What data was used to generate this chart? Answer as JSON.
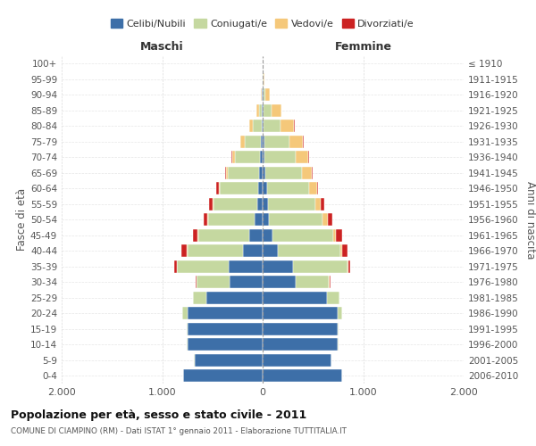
{
  "age_groups": [
    "100+",
    "95-99",
    "90-94",
    "85-89",
    "80-84",
    "75-79",
    "70-74",
    "65-69",
    "60-64",
    "55-59",
    "50-54",
    "45-49",
    "40-44",
    "35-39",
    "30-34",
    "25-29",
    "20-24",
    "15-19",
    "10-14",
    "5-9",
    "0-4"
  ],
  "birth_years": [
    "≤ 1910",
    "1911-1915",
    "1916-1920",
    "1921-1925",
    "1926-1930",
    "1931-1935",
    "1936-1940",
    "1941-1945",
    "1946-1950",
    "1951-1955",
    "1956-1960",
    "1961-1965",
    "1966-1970",
    "1971-1975",
    "1976-1980",
    "1981-1985",
    "1986-1990",
    "1991-1995",
    "1996-2000",
    "2001-2005",
    "2006-2010"
  ],
  "male_celibi": [
    2,
    4,
    5,
    8,
    12,
    18,
    25,
    35,
    45,
    55,
    80,
    130,
    200,
    340,
    330,
    560,
    750,
    750,
    750,
    680,
    790
  ],
  "male_coniugati": [
    0,
    0,
    5,
    30,
    90,
    160,
    250,
    310,
    380,
    430,
    460,
    510,
    550,
    510,
    330,
    130,
    50,
    10,
    5,
    3,
    2
  ],
  "male_vedovi": [
    0,
    0,
    5,
    20,
    30,
    40,
    30,
    20,
    15,
    10,
    8,
    5,
    3,
    2,
    1,
    2,
    0,
    0,
    0,
    0,
    0
  ],
  "male_divorziati": [
    0,
    0,
    0,
    0,
    0,
    5,
    10,
    10,
    25,
    35,
    40,
    50,
    60,
    30,
    10,
    5,
    3,
    0,
    0,
    0,
    0
  ],
  "female_celibi": [
    2,
    4,
    5,
    10,
    12,
    18,
    22,
    30,
    40,
    50,
    65,
    100,
    155,
    300,
    330,
    640,
    750,
    750,
    750,
    680,
    790
  ],
  "female_coniugati": [
    0,
    5,
    20,
    80,
    170,
    250,
    310,
    360,
    420,
    470,
    530,
    600,
    620,
    540,
    330,
    120,
    40,
    8,
    3,
    2,
    2
  ],
  "female_vedovi": [
    2,
    10,
    50,
    100,
    130,
    130,
    120,
    100,
    80,
    60,
    50,
    30,
    20,
    10,
    5,
    3,
    1,
    0,
    0,
    0,
    0
  ],
  "female_divorziati": [
    0,
    0,
    0,
    0,
    5,
    10,
    10,
    10,
    10,
    30,
    50,
    60,
    50,
    20,
    10,
    5,
    2,
    0,
    0,
    0,
    0
  ],
  "color_celibi": "#3d6fa8",
  "color_coniugati": "#c5d8a0",
  "color_vedovi": "#f5c87a",
  "color_divorziati": "#cc2222",
  "title": "Popolazione per età, sesso e stato civile - 2011",
  "subtitle": "COMUNE DI CIAMPINO (RM) - Dati ISTAT 1° gennaio 2011 - Elaborazione TUTTITALIA.IT",
  "label_maschi": "Maschi",
  "label_femmine": "Femmine",
  "ylabel_left": "Fasce di età",
  "ylabel_right": "Anni di nascita",
  "xlim": 2000,
  "bg_color": "#ffffff",
  "grid_color": "#cccccc",
  "legend_labels": [
    "Celibi/Nubili",
    "Coniugati/e",
    "Vedovi/e",
    "Divorziati/e"
  ]
}
